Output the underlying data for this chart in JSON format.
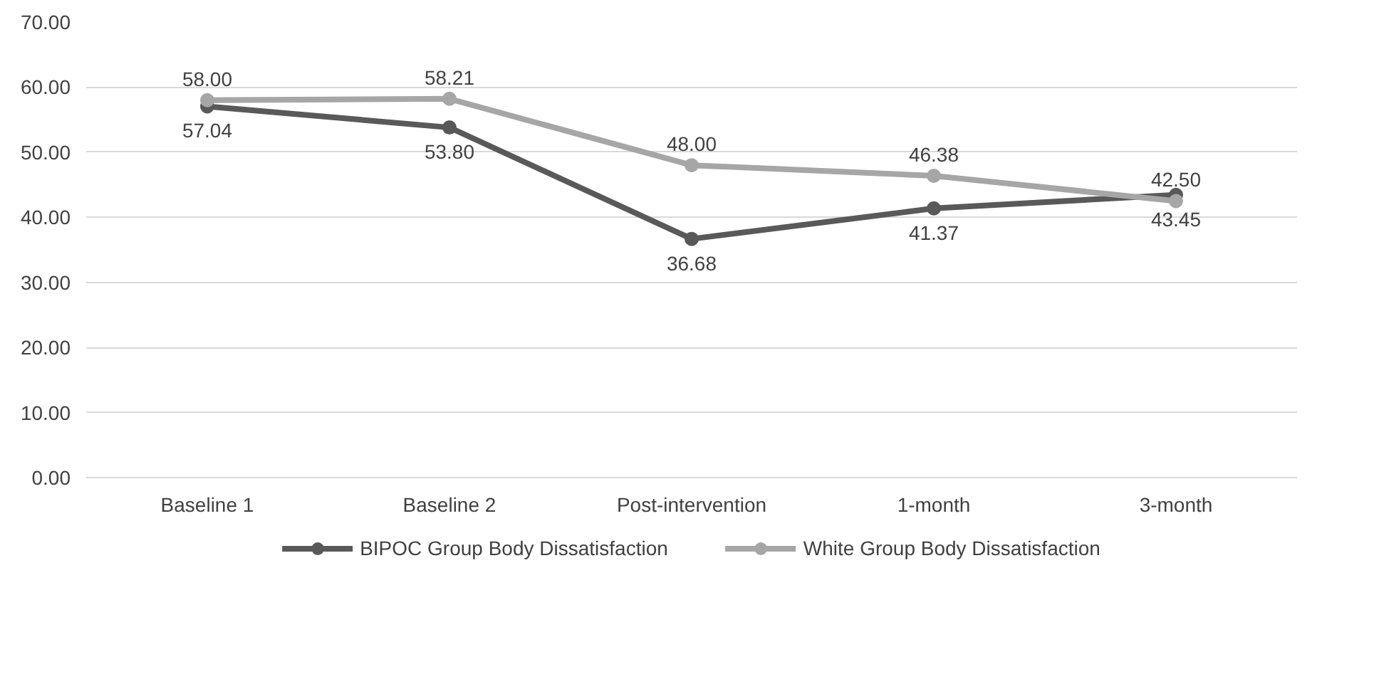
{
  "chart_data": {
    "type": "line",
    "categories": [
      "Baseline 1",
      "Baseline 2",
      "Post-intervention",
      "1-month",
      "3-month"
    ],
    "series": [
      {
        "name": "BIPOC Group Body Dissatisfaction",
        "color": "#595959",
        "values": [
          57.04,
          53.8,
          36.68,
          41.37,
          43.45
        ],
        "value_labels": [
          "57.04",
          "53.80",
          "36.68",
          "41.37",
          "43.45"
        ]
      },
      {
        "name": "White Group Body Dissatisfaction",
        "color": "#a6a6a6",
        "values": [
          58.0,
          58.21,
          48.0,
          46.38,
          42.5
        ],
        "value_labels": [
          "58.00",
          "58.21",
          "48.00",
          "46.38",
          "42.50"
        ]
      }
    ],
    "ylim": [
      0,
      70
    ],
    "yticks": [
      {
        "value": 0,
        "label": "0.00"
      },
      {
        "value": 10,
        "label": "10.00"
      },
      {
        "value": 20,
        "label": "20.00"
      },
      {
        "value": 30,
        "label": "30.00"
      },
      {
        "value": 40,
        "label": "40.00"
      },
      {
        "value": 50,
        "label": "50.00"
      },
      {
        "value": 60,
        "label": "60.00"
      },
      {
        "value": 70,
        "label": "70.00"
      }
    ],
    "grid": "y",
    "legend": "bottom",
    "marker": "circle",
    "line_style": "solid"
  }
}
